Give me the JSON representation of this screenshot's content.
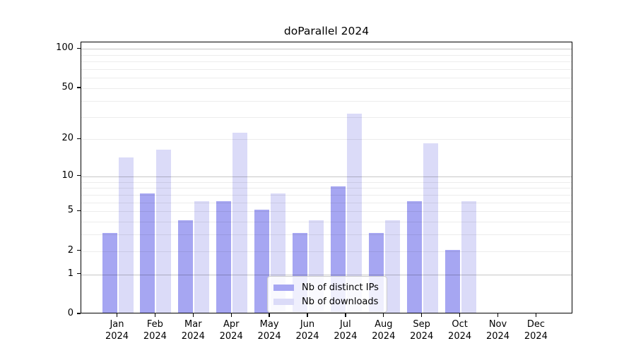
{
  "chart_data": {
    "type": "bar",
    "title": "doParallel 2024",
    "categories": [
      "Jan 2024",
      "Feb 2024",
      "Mar 2024",
      "Apr 2024",
      "May 2024",
      "Jun 2024",
      "Jul 2024",
      "Aug 2024",
      "Sep 2024",
      "Oct 2024",
      "Nov 2024",
      "Dec 2024"
    ],
    "series": [
      {
        "name": "Nb of distinct IPs",
        "color": "#a6a6f2",
        "values": [
          3,
          7,
          4,
          6,
          5,
          3,
          8,
          3,
          6,
          2,
          0,
          0
        ]
      },
      {
        "name": "Nb of downloads",
        "color": "#dbdbf8",
        "values": [
          14,
          16,
          6,
          22,
          7,
          4,
          31,
          4,
          18,
          6,
          0,
          0
        ]
      }
    ],
    "y_axis": {
      "scale": "log1p",
      "tick_values": [
        0,
        1,
        2,
        5,
        10,
        20,
        50,
        100
      ],
      "major_gridlines": [
        1,
        10,
        100
      ],
      "minor_gridlines": [
        2,
        3,
        4,
        5,
        6,
        7,
        8,
        9,
        20,
        30,
        40,
        50,
        60,
        70,
        80,
        90
      ],
      "range": [
        0,
        112
      ]
    },
    "x_axis": {
      "year_line": "2024"
    },
    "grid": "on",
    "legend_position": "bottom-center",
    "colors": {
      "axis": "#000000",
      "background": "#ffffff"
    }
  }
}
